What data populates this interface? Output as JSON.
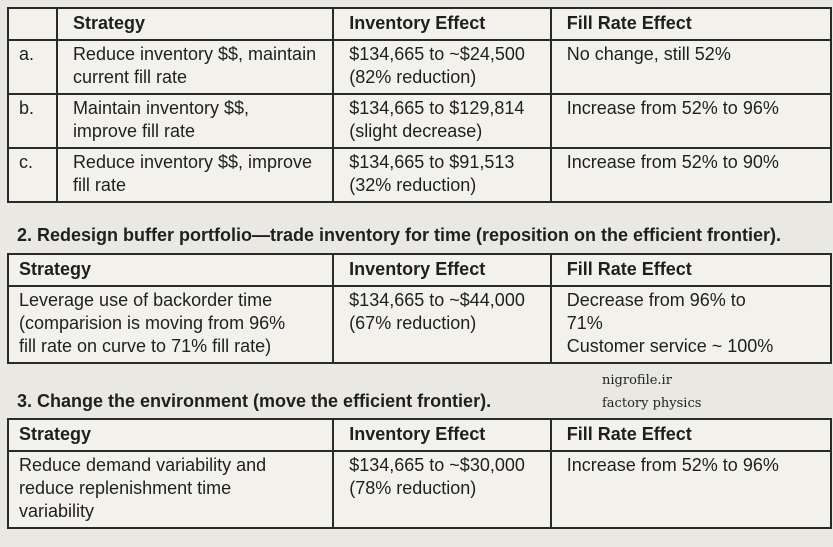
{
  "table1": {
    "headers": [
      "",
      "Strategy",
      "Inventory Effect",
      "Fill Rate Effect"
    ],
    "rows": [
      {
        "letter": "a.",
        "strategy": [
          "Reduce inventory $$, maintain",
          "current fill rate"
        ],
        "inventory": [
          "$134,665 to ~$24,500",
          "(82% reduction)"
        ],
        "fill_rate": [
          "No change, still 52%"
        ]
      },
      {
        "letter": "b.",
        "strategy": [
          "Maintain inventory $$,",
          "improve fill rate"
        ],
        "inventory": [
          "$134,665 to $129,814",
          "(slight decrease)"
        ],
        "fill_rate": [
          "Increase from 52% to 96%"
        ]
      },
      {
        "letter": "c.",
        "strategy": [
          "Reduce inventory $$, improve",
          "fill rate"
        ],
        "inventory": [
          "$134,665 to $91,513",
          "(32% reduction)"
        ],
        "fill_rate": [
          "Increase from 52% to 90%"
        ]
      }
    ]
  },
  "section2": {
    "heading": "2. Redesign buffer portfolio—trade inventory for time (reposition on the efficient frontier).",
    "headers": [
      "Strategy",
      "Inventory Effect",
      "Fill Rate Effect"
    ],
    "row": {
      "strategy": [
        "Leverage use of backorder time",
        "(comparision is moving from 96%",
        "fill rate on curve to 71% fill rate)"
      ],
      "inventory": [
        "$134,665 to ~$44,000",
        "(67% reduction)"
      ],
      "fill_rate": [
        "Decrease from 96% to",
        "71%",
        "Customer service ~ 100%"
      ]
    }
  },
  "section3": {
    "heading": "3. Change the environment (move the efficient frontier).",
    "headers": [
      "Strategy",
      "Inventory Effect",
      "Fill Rate Effect"
    ],
    "row": {
      "strategy": [
        "Reduce demand variability and",
        "reduce replenishment time",
        "variability"
      ],
      "inventory": [
        "$134,665 to ~$30,000",
        "(78% reduction)"
      ],
      "fill_rate": [
        "Increase from 52% to 96%"
      ]
    }
  },
  "watermark": {
    "line1": "nigrofile.ir",
    "line2": "factory physics"
  }
}
